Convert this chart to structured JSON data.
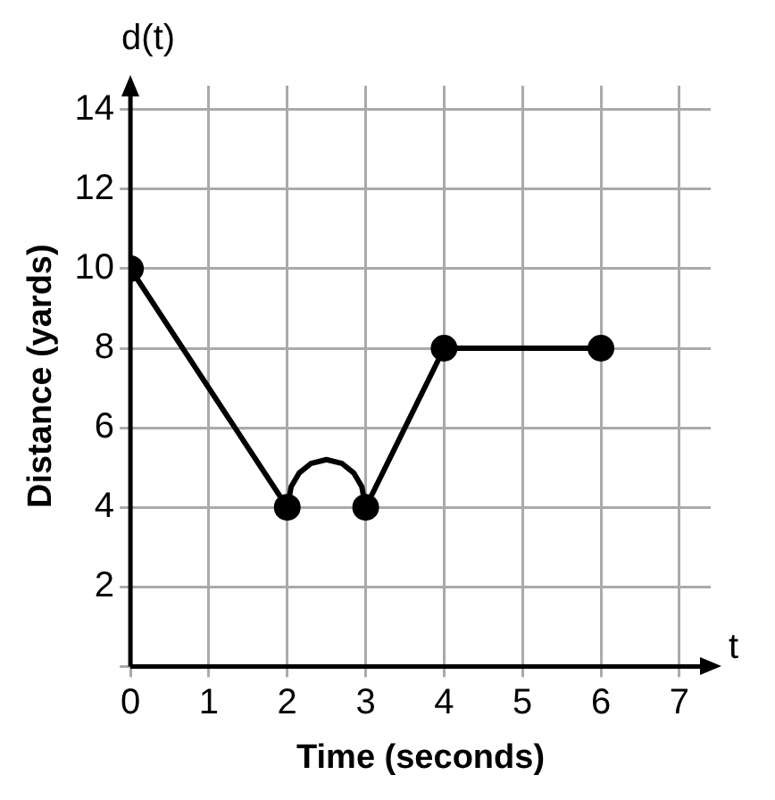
{
  "chart_data": {
    "type": "line",
    "xlabel": "Time (seconds)",
    "ylabel": "Distance (yards)",
    "annotations": [
      "d(t)",
      "t"
    ],
    "xlim": [
      0,
      7.4
    ],
    "ylim": [
      0,
      14.6
    ],
    "xticks": [
      0,
      1,
      2,
      3,
      4,
      5,
      6,
      7
    ],
    "yticks": [
      {
        "value": 0,
        "label": null
      },
      2,
      4,
      6,
      8,
      10,
      12,
      14
    ],
    "grid": true,
    "legend": false,
    "color": "#000000",
    "series": [
      {
        "x": [
          0,
          2
        ],
        "values": [
          10,
          4
        ],
        "marker": "circle"
      },
      {
        "x": [
          2,
          2.05,
          2.15,
          2.3,
          2.5,
          2.7,
          2.85,
          2.95,
          3
        ],
        "values": [
          4,
          4.52,
          4.86,
          5.1,
          5.2,
          5.1,
          4.86,
          4.52,
          4
        ],
        "marker": "none"
      },
      {
        "x": [
          3,
          4,
          6
        ],
        "values": [
          4,
          8,
          8
        ],
        "marker": "circle"
      }
    ]
  }
}
